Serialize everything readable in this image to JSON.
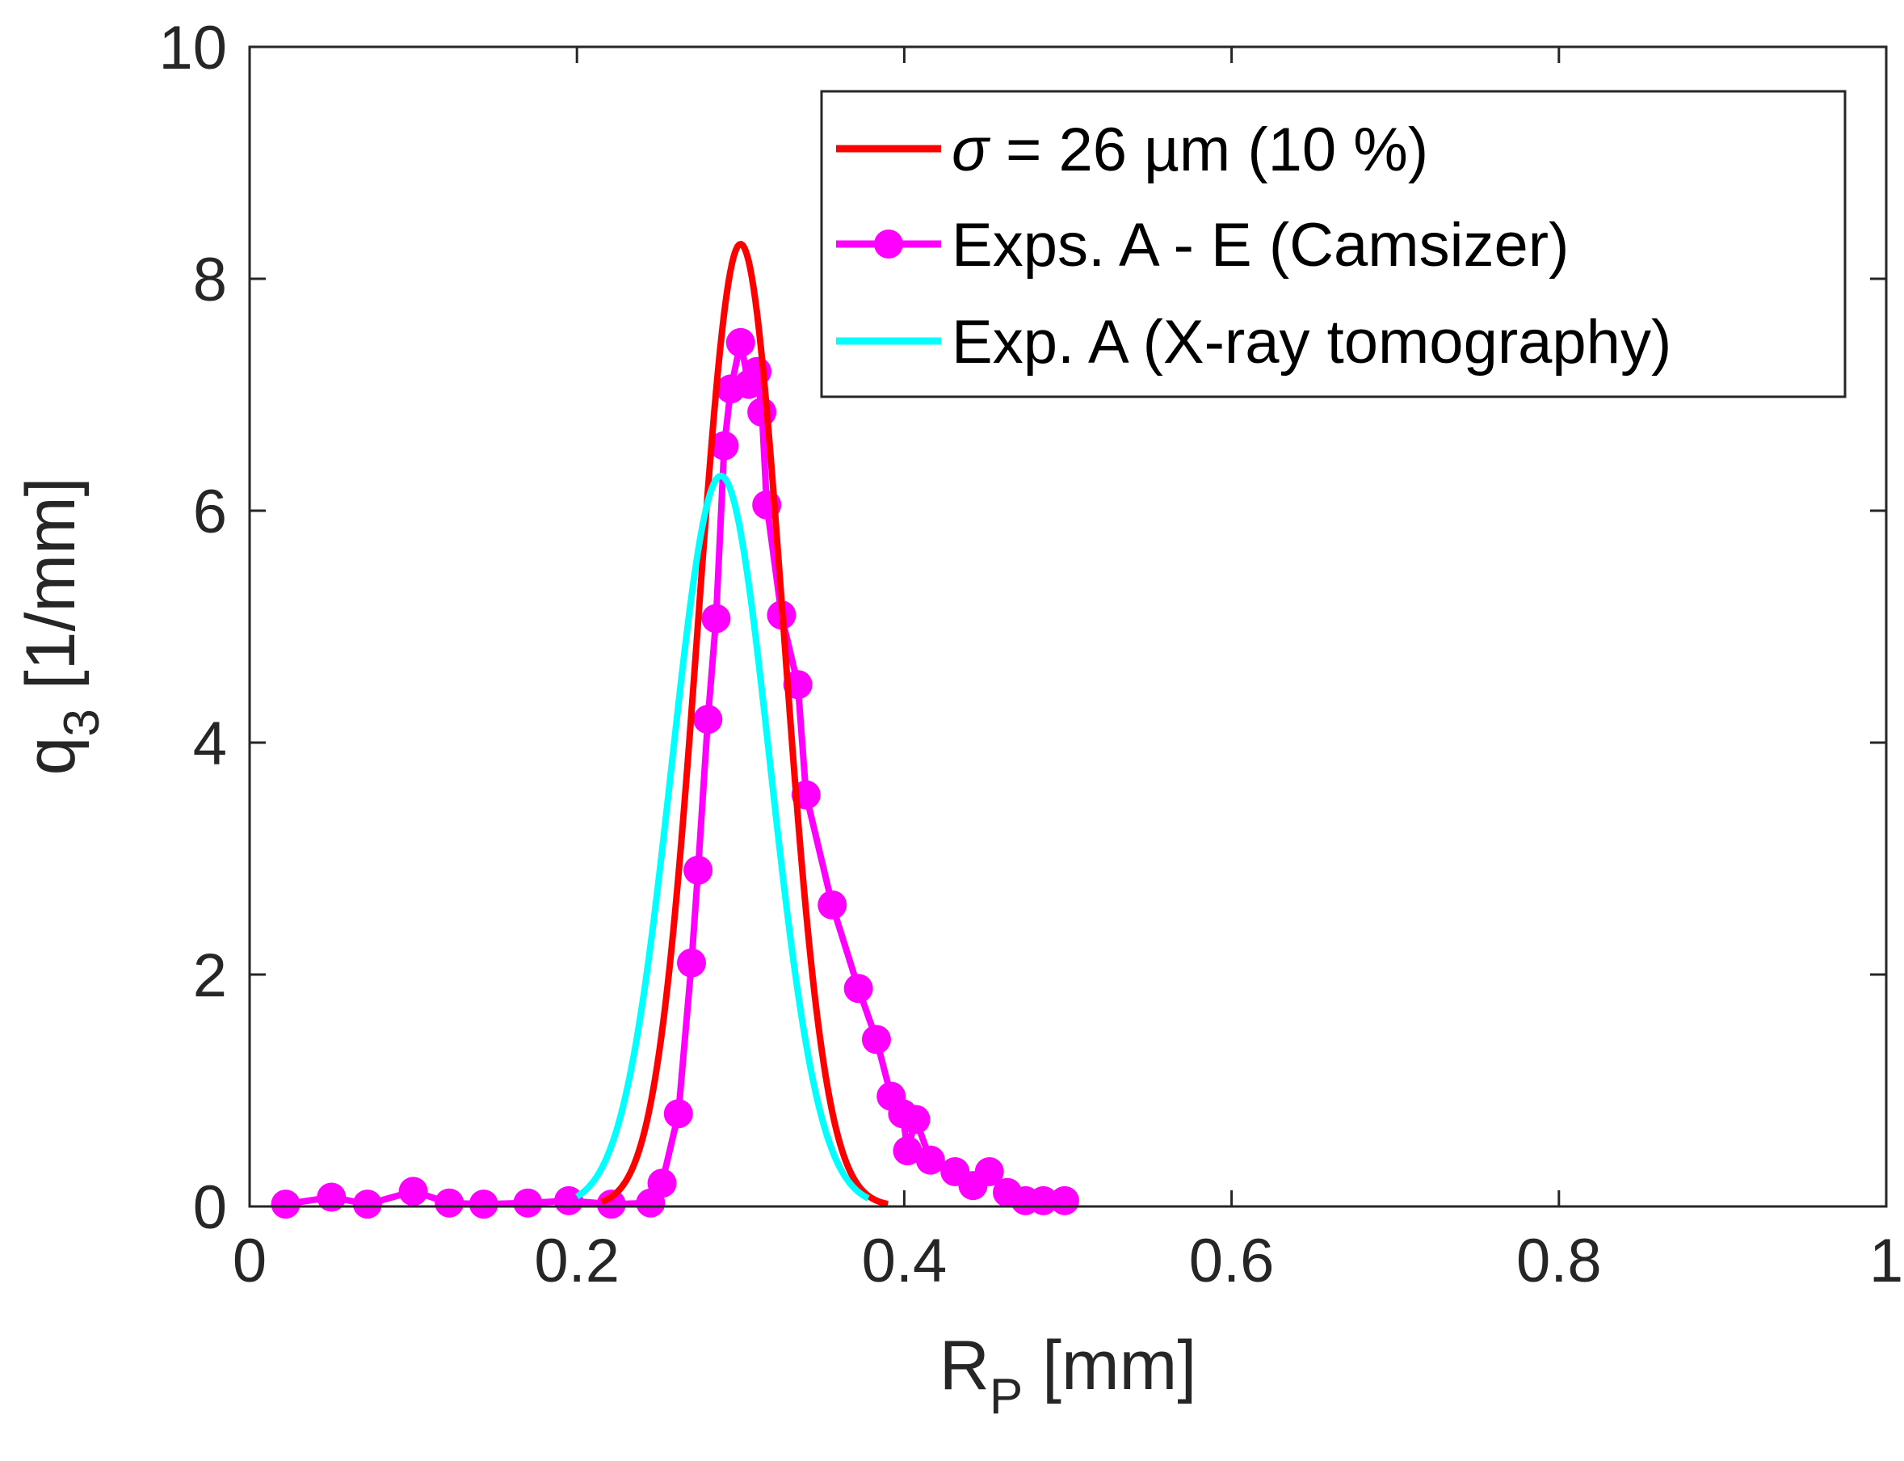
{
  "chart_data": {
    "type": "line",
    "title": "",
    "xlabel": {
      "main": "R",
      "sub": "P",
      "unit": " [mm]"
    },
    "ylabel": {
      "main": "q",
      "sub": "3",
      "unit": " [1/mm]"
    },
    "xlim": [
      0,
      1
    ],
    "ylim": [
      0,
      10
    ],
    "xticks": [
      0,
      0.2,
      0.4,
      0.6,
      0.8,
      1
    ],
    "xtick_labels": [
      "0",
      "0.2",
      "0.4",
      "0.6",
      "0.8",
      "1"
    ],
    "yticks": [
      0,
      2,
      4,
      6,
      8,
      10
    ],
    "ytick_labels": [
      "0",
      "2",
      "4",
      "6",
      "8",
      "10"
    ],
    "grid": false,
    "legend_position": "top-right",
    "series": [
      {
        "name": "σ = 26 µm (10 %)",
        "legend_symbol": "σ",
        "legend_rest": " = 26 µm (10 %)",
        "color": "#ff0000",
        "kind": "gaussian",
        "mean": 0.3,
        "sigma": 0.026,
        "peak": 8.3,
        "x_range": [
          0.215,
          0.39
        ]
      },
      {
        "name": "Exps. A - E (Camsizer)",
        "legend_label": "Exps. A - E (Camsizer)",
        "color": "#ff00ff",
        "kind": "points",
        "x": [
          0.022,
          0.05,
          0.072,
          0.1,
          0.122,
          0.143,
          0.17,
          0.195,
          0.221,
          0.245,
          0.252,
          0.262,
          0.27,
          0.274,
          0.28,
          0.285,
          0.29,
          0.294,
          0.3,
          0.305,
          0.31,
          0.313,
          0.316,
          0.325,
          0.335,
          0.34,
          0.356,
          0.372,
          0.383,
          0.392,
          0.399,
          0.402,
          0.407,
          0.416,
          0.431,
          0.442,
          0.452,
          0.463,
          0.474,
          0.485,
          0.498
        ],
        "y": [
          0.02,
          0.08,
          0.02,
          0.13,
          0.03,
          0.02,
          0.03,
          0.05,
          0.02,
          0.03,
          0.2,
          0.8,
          2.1,
          2.9,
          4.2,
          5.07,
          6.56,
          7.05,
          7.45,
          7.09,
          7.2,
          6.85,
          6.05,
          5.1,
          4.5,
          3.55,
          2.6,
          1.88,
          1.44,
          0.95,
          0.8,
          0.48,
          0.75,
          0.4,
          0.3,
          0.18,
          0.3,
          0.12,
          0.05,
          0.05,
          0.05
        ]
      },
      {
        "name": "Exp. A (X-ray tomography)",
        "legend_label": "Exp. A (X-ray tomography)",
        "color": "#00ffff",
        "kind": "gaussian",
        "mean": 0.288,
        "sigma": 0.03,
        "peak": 6.3,
        "x_range": [
          0.2,
          0.378
        ]
      }
    ]
  }
}
